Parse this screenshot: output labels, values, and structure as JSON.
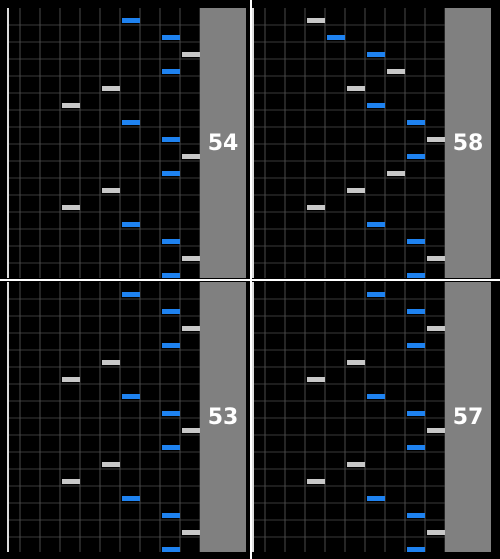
{
  "measures": [
    {
      "number": "54",
      "notes": [
        [
          4,
          0
        ],
        [
          6,
          1
        ],
        [
          7,
          2
        ],
        [
          6,
          3
        ],
        [
          3,
          4
        ],
        [
          1,
          5
        ],
        [
          4,
          6
        ],
        [
          6,
          7
        ],
        [
          7,
          8
        ],
        [
          6,
          9
        ],
        [
          3,
          10
        ],
        [
          1,
          11
        ],
        [
          4,
          12
        ],
        [
          6,
          13
        ],
        [
          7,
          14
        ],
        [
          6,
          15
        ]
      ]
    },
    {
      "number": "58",
      "notes": [
        [
          1,
          0
        ],
        [
          2,
          1
        ],
        [
          4,
          2
        ],
        [
          5,
          3
        ],
        [
          3,
          4
        ],
        [
          4,
          5
        ],
        [
          6,
          6
        ],
        [
          7,
          7
        ],
        [
          6,
          8
        ],
        [
          5,
          9
        ],
        [
          3,
          10
        ],
        [
          1,
          11
        ],
        [
          4,
          12
        ],
        [
          6,
          13
        ],
        [
          7,
          14
        ],
        [
          6,
          15
        ]
      ]
    },
    {
      "number": "53",
      "notes": [
        [
          4,
          0
        ],
        [
          6,
          1
        ],
        [
          7,
          2
        ],
        [
          6,
          3
        ],
        [
          3,
          4
        ],
        [
          1,
          5
        ],
        [
          4,
          6
        ],
        [
          6,
          7
        ],
        [
          7,
          8
        ],
        [
          6,
          9
        ],
        [
          3,
          10
        ],
        [
          1,
          11
        ],
        [
          4,
          12
        ],
        [
          6,
          13
        ],
        [
          7,
          14
        ],
        [
          6,
          15
        ]
      ]
    },
    {
      "number": "57",
      "notes": [
        [
          4,
          0
        ],
        [
          6,
          1
        ],
        [
          7,
          2
        ],
        [
          6,
          3
        ],
        [
          3,
          4
        ],
        [
          1,
          5
        ],
        [
          4,
          6
        ],
        [
          6,
          7
        ],
        [
          7,
          8
        ],
        [
          6,
          9
        ],
        [
          3,
          10
        ],
        [
          1,
          11
        ],
        [
          4,
          12
        ],
        [
          6,
          13
        ],
        [
          7,
          14
        ],
        [
          6,
          15
        ]
      ]
    }
  ]
}
